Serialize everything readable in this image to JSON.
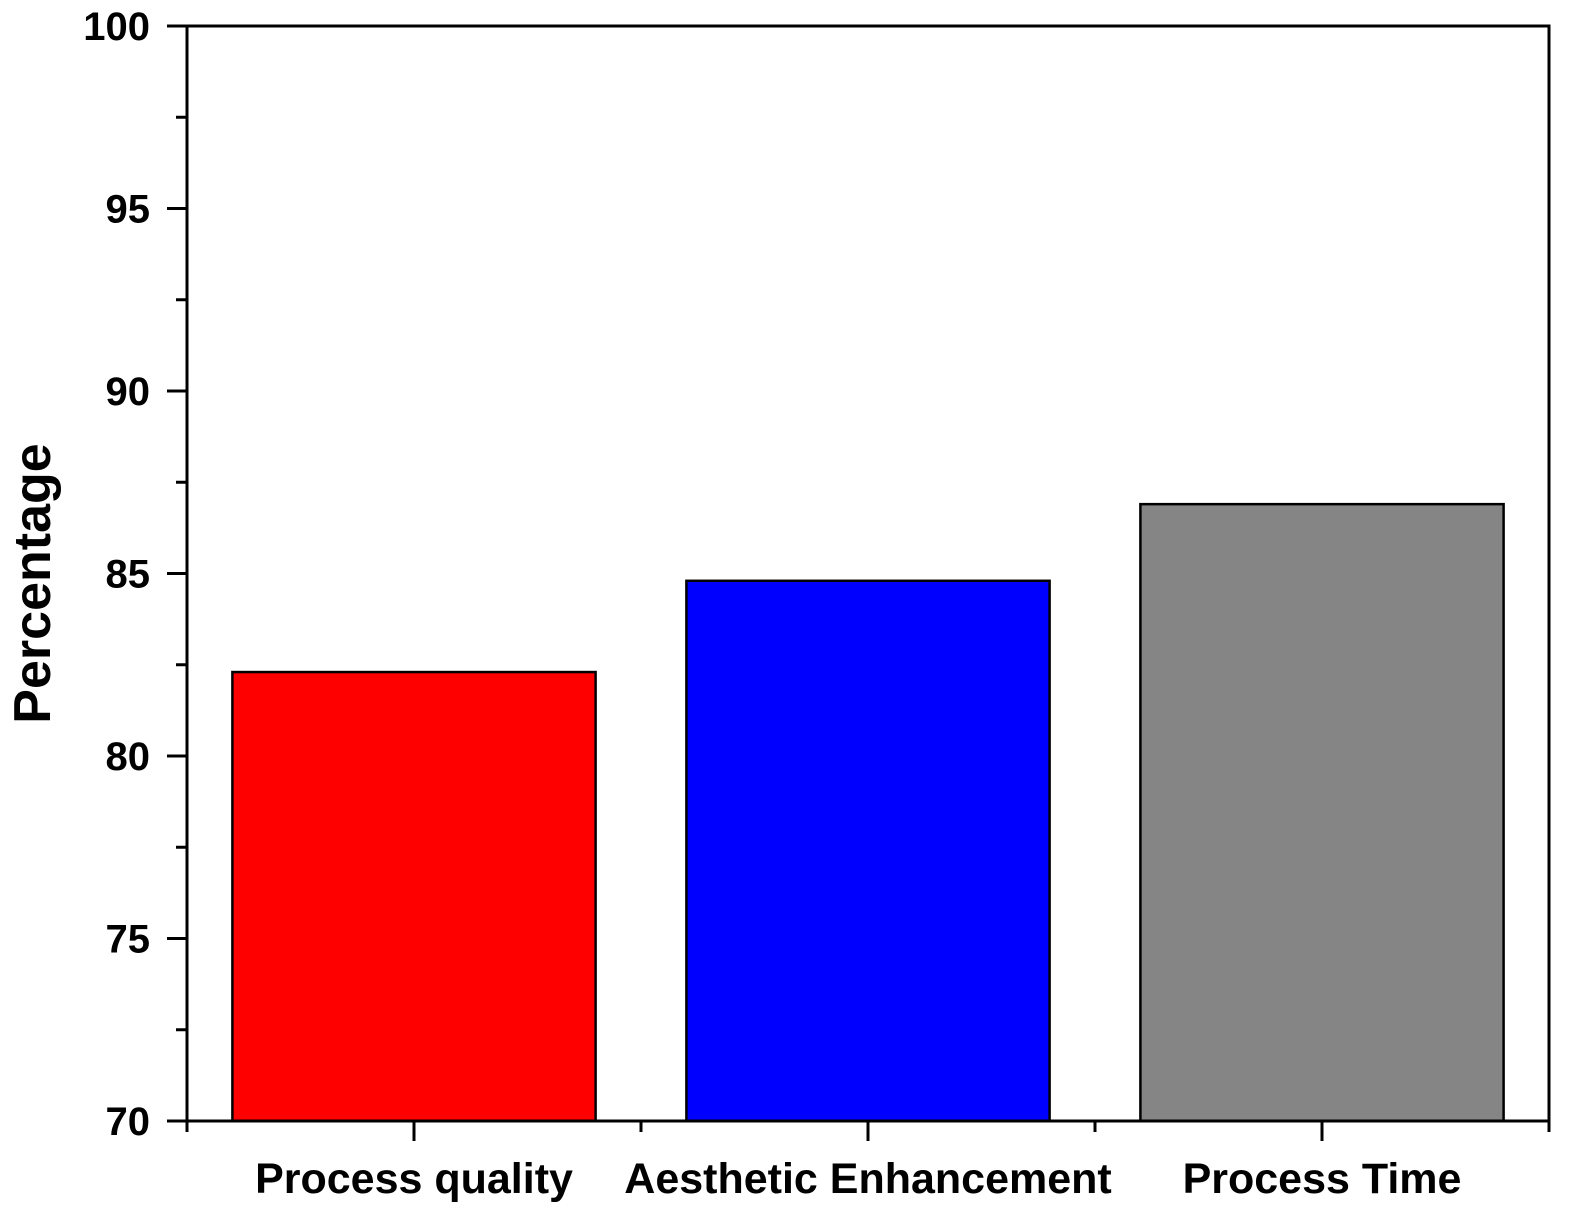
{
  "chart_data": {
    "type": "bar",
    "title": "",
    "xlabel": "",
    "ylabel": "Percentage",
    "categories": [
      "Process quality",
      "Aesthetic Enhancement",
      "Process Time"
    ],
    "values": [
      82.3,
      84.8,
      86.9
    ],
    "colors": [
      "#ff0000",
      "#0000ff",
      "#858585"
    ],
    "ylim": [
      70,
      100
    ],
    "yticks": [
      "70",
      "75",
      "80",
      "85",
      "90",
      "95",
      "100"
    ],
    "grid": false,
    "legend": "none"
  }
}
